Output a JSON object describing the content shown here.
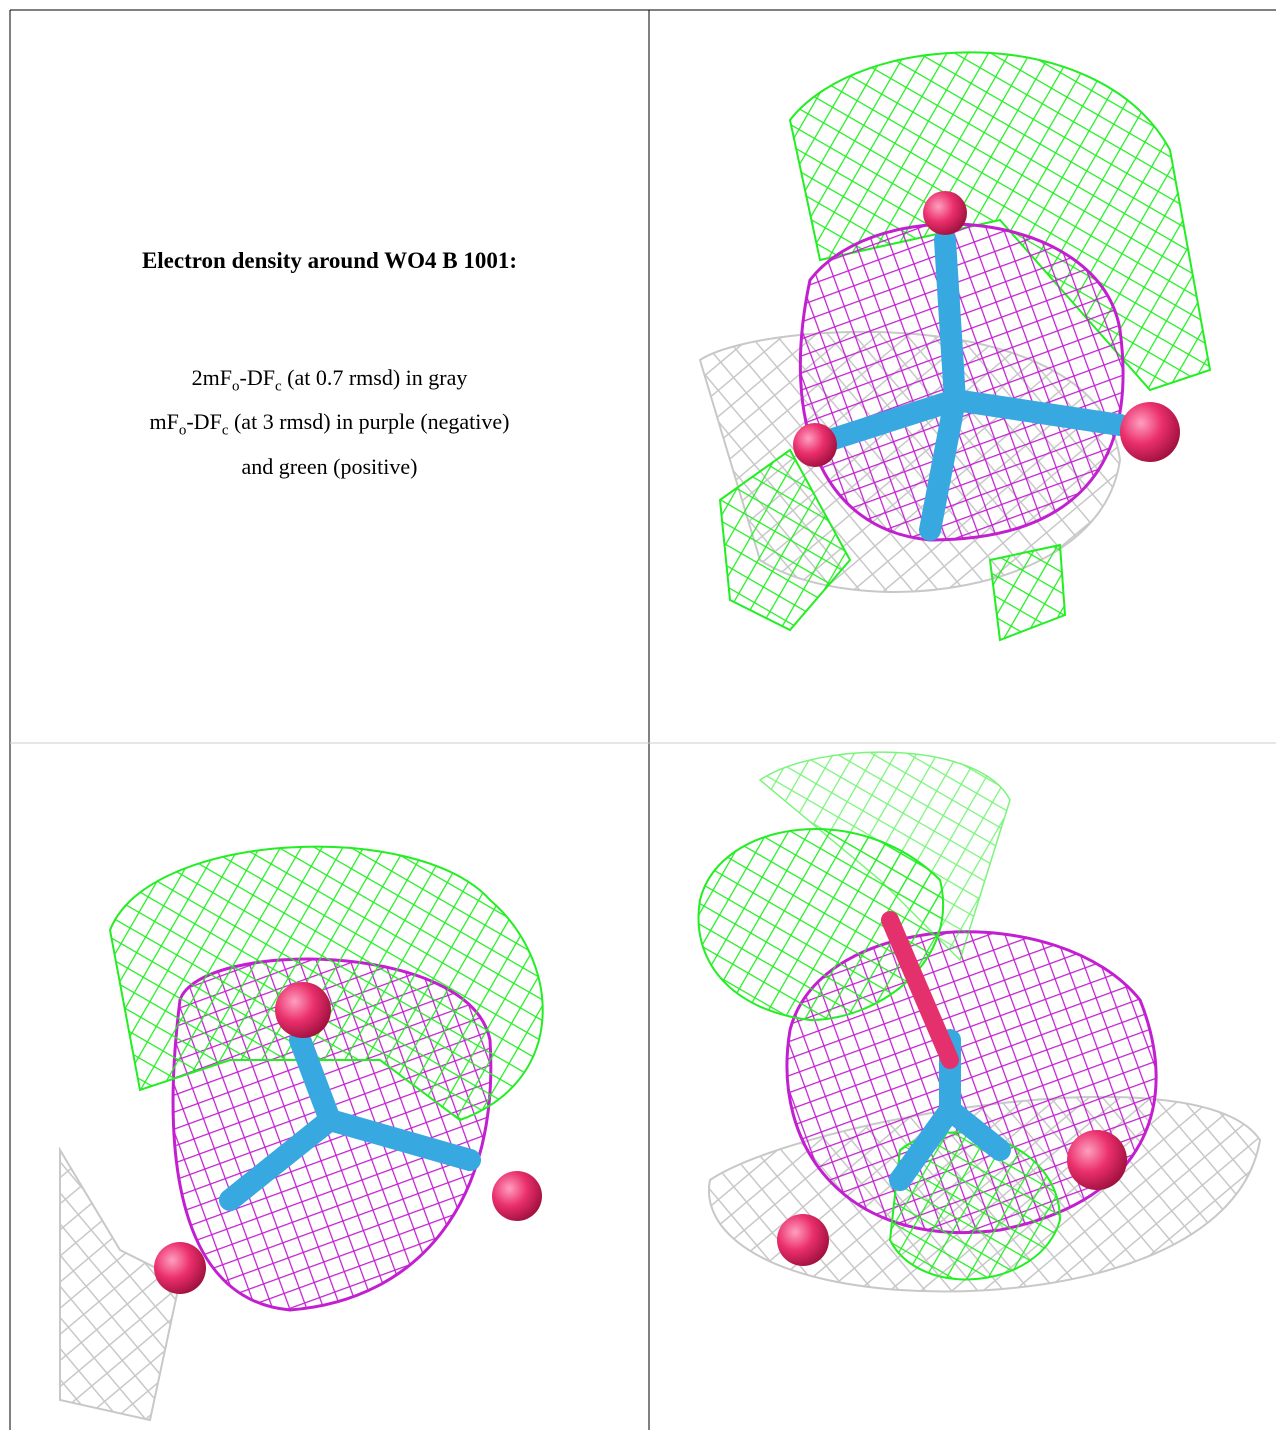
{
  "caption": {
    "title": "Electron density around WO4 B 1001:",
    "lines": [
      [
        {
          "text": "2mF"
        },
        {
          "text": "o",
          "subscript": true
        },
        {
          "text": "-DF"
        },
        {
          "text": "c",
          "subscript": true
        },
        {
          "text": " (at 0.7 rmsd) in gray"
        }
      ],
      [
        {
          "text": "mF"
        },
        {
          "text": "o",
          "subscript": true
        },
        {
          "text": "-DF"
        },
        {
          "text": "c",
          "subscript": true
        },
        {
          "text": " (at 3 rmsd) in purple (negative)"
        }
      ],
      [
        {
          "text": "and green (positive)"
        }
      ]
    ]
  }
}
